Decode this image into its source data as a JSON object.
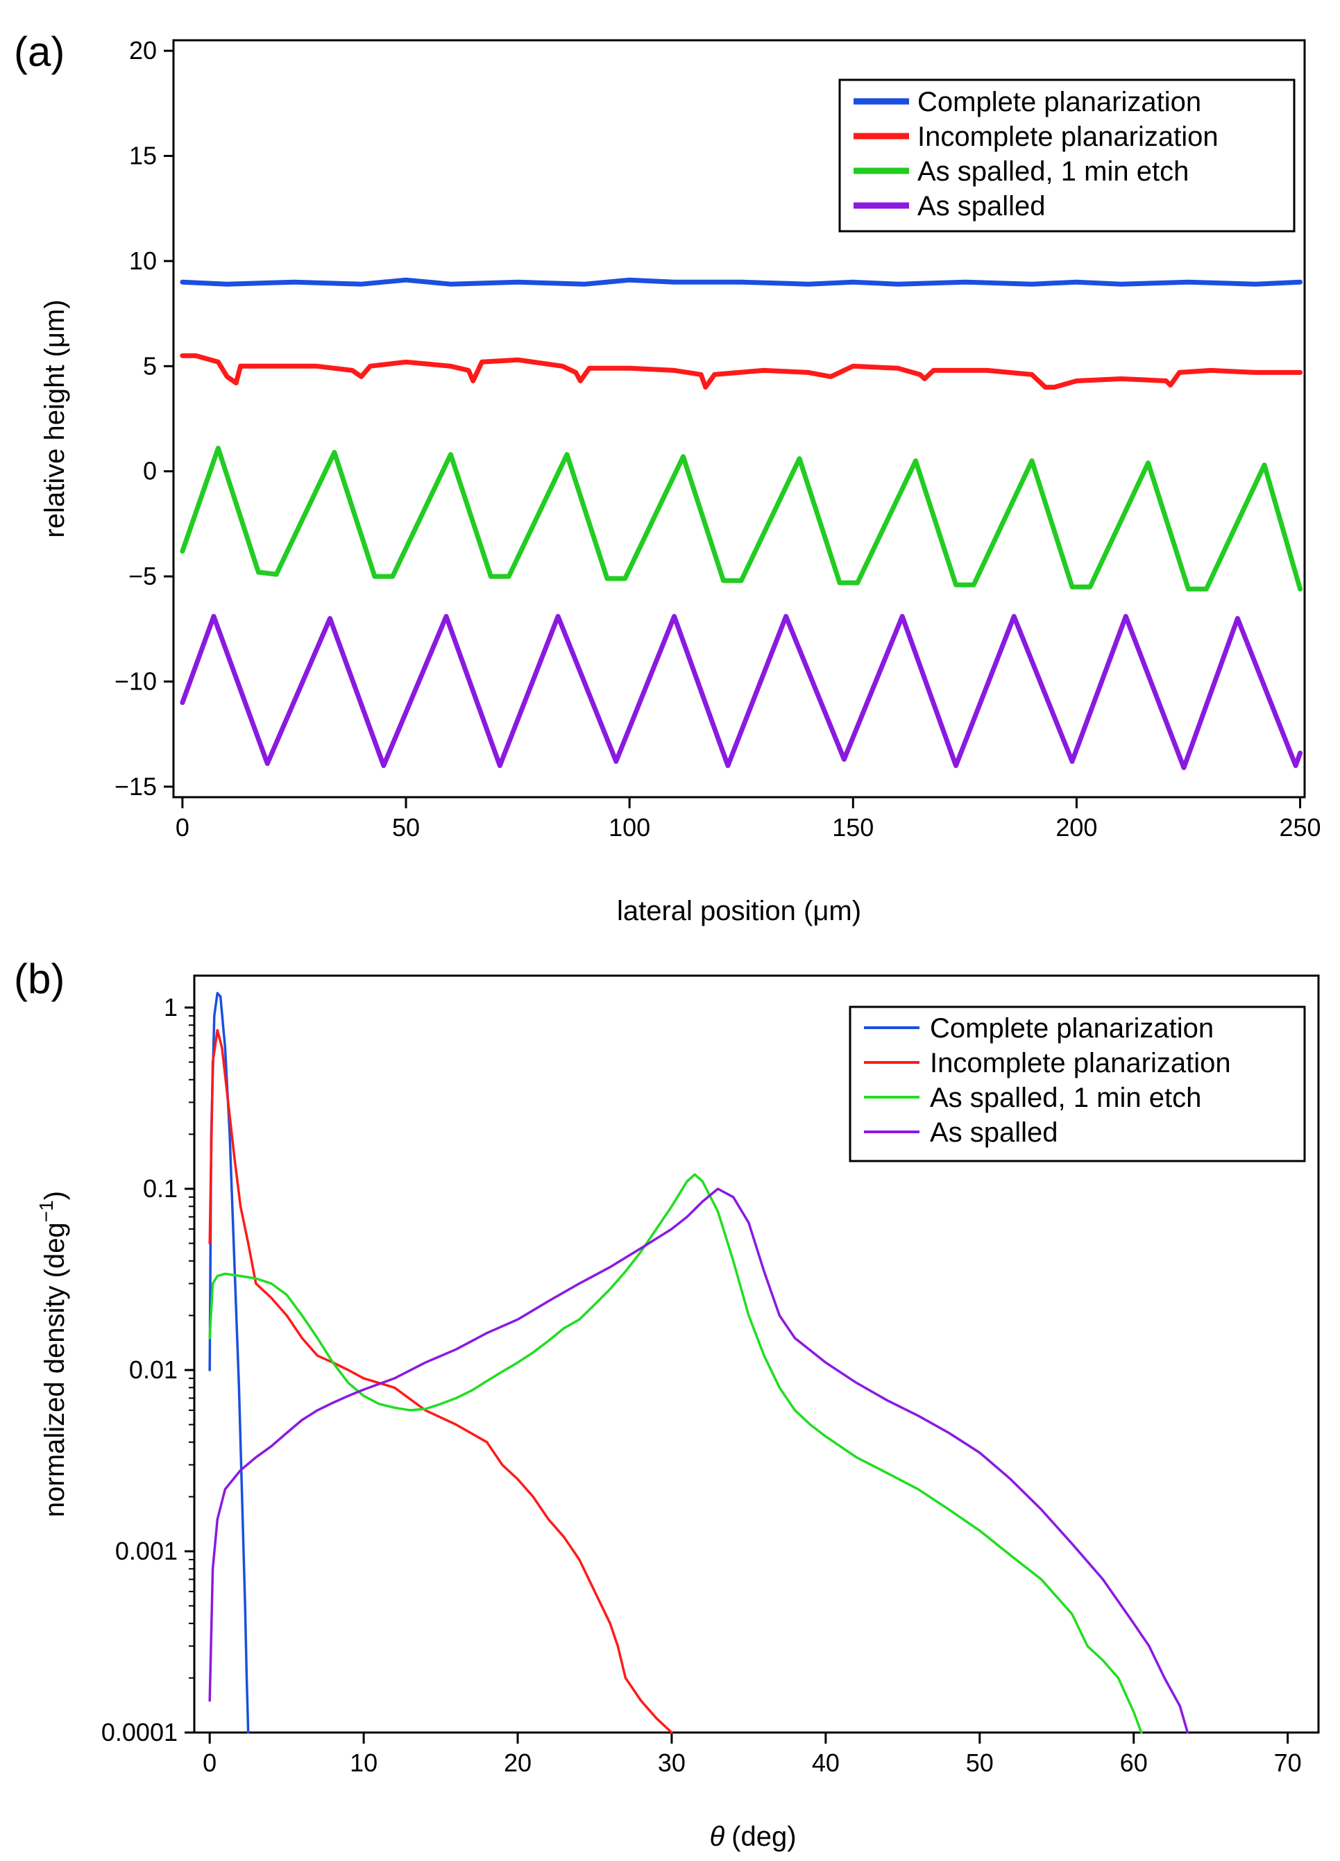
{
  "chart_data": [
    {
      "panel_label": "(a)",
      "type": "line",
      "xlabel": "lateral position (μm)",
      "ylabel": "relative height (μm)",
      "xlim": [
        -2,
        251
      ],
      "ylim": [
        -15.5,
        20.5
      ],
      "xticks": [
        0,
        50,
        100,
        150,
        200,
        250
      ],
      "xtick_labels": [
        "0",
        "50",
        "100",
        "150",
        "200",
        "250"
      ],
      "yticks": [
        20,
        15,
        10,
        5,
        0,
        -5,
        -10,
        -15
      ],
      "ytick_labels": [
        "20",
        "15",
        "10",
        "5",
        "0",
        "−5",
        "−10",
        "−15"
      ],
      "legend_position": "top-right",
      "series": [
        {
          "name": "Complete planarization",
          "color": "#1a4fe0",
          "x": [
            0,
            10,
            25,
            40,
            50,
            60,
            75,
            90,
            100,
            110,
            125,
            140,
            150,
            160,
            175,
            190,
            200,
            210,
            225,
            240,
            250
          ],
          "y": [
            9.0,
            8.9,
            9.0,
            8.9,
            9.1,
            8.9,
            9.0,
            8.9,
            9.1,
            9.0,
            9.0,
            8.9,
            9.0,
            8.9,
            9.0,
            8.9,
            9.0,
            8.9,
            9.0,
            8.9,
            9.0
          ]
        },
        {
          "name": "Incomplete planarization",
          "color": "#ff1a1a",
          "x": [
            0,
            3,
            8,
            10,
            12,
            13,
            20,
            30,
            38,
            40,
            42,
            50,
            60,
            64,
            65,
            67,
            75,
            85,
            88,
            89,
            91,
            100,
            110,
            116,
            117,
            119,
            130,
            140,
            145,
            150,
            160,
            165,
            166,
            168,
            180,
            190,
            193,
            195,
            200,
            210,
            220,
            221,
            223,
            230,
            240,
            250
          ],
          "y": [
            5.5,
            5.5,
            5.2,
            4.5,
            4.2,
            5.0,
            5.0,
            5.0,
            4.8,
            4.5,
            5.0,
            5.2,
            5.0,
            4.8,
            4.3,
            5.2,
            5.3,
            5.0,
            4.7,
            4.3,
            4.9,
            4.9,
            4.8,
            4.6,
            4.0,
            4.6,
            4.8,
            4.7,
            4.5,
            5.0,
            4.9,
            4.6,
            4.4,
            4.8,
            4.8,
            4.6,
            4.0,
            4.0,
            4.3,
            4.4,
            4.3,
            4.1,
            4.7,
            4.8,
            4.7,
            4.7
          ]
        },
        {
          "name": "As spalled, 1 min etch",
          "color": "#22cc22",
          "x": [
            0,
            8,
            17,
            21,
            34,
            43,
            47,
            60,
            69,
            73,
            86,
            95,
            99,
            112,
            121,
            125,
            138,
            147,
            151,
            164,
            173,
            177,
            190,
            199,
            203,
            216,
            225,
            229,
            242,
            250
          ],
          "y": [
            -3.8,
            1.1,
            -4.8,
            -4.9,
            0.9,
            -5.0,
            -5.0,
            0.8,
            -5.0,
            -5.0,
            0.8,
            -5.1,
            -5.1,
            0.7,
            -5.2,
            -5.2,
            0.6,
            -5.3,
            -5.3,
            0.5,
            -5.4,
            -5.4,
            0.5,
            -5.5,
            -5.5,
            0.4,
            -5.6,
            -5.6,
            0.3,
            -5.6
          ]
        },
        {
          "name": "As spalled",
          "color": "#8a1ae0",
          "x": [
            0,
            7,
            19,
            33,
            45,
            59,
            71,
            84,
            97,
            110,
            122,
            135,
            148,
            161,
            173,
            186,
            199,
            211,
            224,
            236,
            249,
            250
          ],
          "y": [
            -11.0,
            -6.9,
            -13.9,
            -7.0,
            -14.0,
            -6.9,
            -14.0,
            -6.9,
            -13.8,
            -6.9,
            -14.0,
            -6.9,
            -13.7,
            -6.9,
            -14.0,
            -6.9,
            -13.8,
            -6.9,
            -14.1,
            -7.0,
            -14.0,
            -13.4
          ]
        }
      ]
    },
    {
      "panel_label": "(b)",
      "type": "line",
      "yscale": "log",
      "xlabel_symbol": "θ",
      "xlabel": "(deg)",
      "ylabel": "normalized density (deg",
      "ylabel_superscript": "−1",
      "ylabel_close": ")",
      "xlim": [
        -1,
        72
      ],
      "ylim": [
        0.0001,
        1.5
      ],
      "xticks": [
        0,
        10,
        20,
        30,
        40,
        50,
        60,
        70
      ],
      "xtick_labels": [
        "0",
        "10",
        "20",
        "30",
        "40",
        "50",
        "60",
        "70"
      ],
      "yticks": [
        1,
        0.1,
        0.01,
        0.001,
        0.0001
      ],
      "ytick_labels": [
        "1",
        "0.1",
        "0.01",
        "0.001",
        "0.0001"
      ],
      "legend_position": "top-right",
      "series": [
        {
          "name": "Complete planarization",
          "color": "#1a4fe0",
          "x": [
            0,
            0.1,
            0.3,
            0.5,
            0.7,
            1.0,
            1.3,
            1.6,
            1.9,
            2.1,
            2.3,
            2.4,
            2.5
          ],
          "y": [
            0.01,
            0.2,
            0.9,
            1.2,
            1.15,
            0.6,
            0.2,
            0.04,
            0.008,
            0.002,
            0.0005,
            0.0002,
            0.0001
          ]
        },
        {
          "name": "Incomplete planarization",
          "color": "#ff1a1a",
          "x": [
            0,
            0.2,
            0.5,
            0.8,
            1.2,
            1.6,
            2.0,
            2.5,
            3.0,
            4,
            5,
            6,
            7,
            8,
            9,
            10,
            12,
            14,
            16,
            18,
            19,
            20,
            21,
            22,
            23,
            24,
            25,
            26,
            26.5,
            27,
            28,
            29,
            30
          ],
          "y": [
            0.05,
            0.5,
            0.75,
            0.6,
            0.3,
            0.15,
            0.08,
            0.05,
            0.03,
            0.025,
            0.02,
            0.015,
            0.012,
            0.011,
            0.01,
            0.009,
            0.008,
            0.006,
            0.005,
            0.004,
            0.003,
            0.0025,
            0.002,
            0.0015,
            0.0012,
            0.0009,
            0.0006,
            0.0004,
            0.0003,
            0.0002,
            0.00015,
            0.00012,
            0.0001
          ]
        },
        {
          "name": "As spalled,  1 min etch",
          "color": "#22dd22",
          "x": [
            0,
            0.2,
            0.5,
            1,
            2,
            3,
            4,
            5,
            6,
            7,
            8,
            9,
            10,
            11,
            12,
            13,
            14,
            15,
            16,
            17,
            18,
            19,
            20,
            21,
            22,
            23,
            24,
            25,
            26,
            27,
            28,
            29,
            30,
            31,
            31.5,
            32,
            33,
            34,
            35,
            36,
            37,
            38,
            39,
            40,
            42,
            44,
            46,
            48,
            50,
            52,
            54,
            56,
            57,
            58,
            59,
            60,
            60.5
          ],
          "y": [
            0.015,
            0.03,
            0.033,
            0.034,
            0.033,
            0.032,
            0.03,
            0.026,
            0.02,
            0.015,
            0.011,
            0.0085,
            0.0072,
            0.0065,
            0.0062,
            0.006,
            0.0061,
            0.0065,
            0.007,
            0.0077,
            0.0087,
            0.0098,
            0.011,
            0.0125,
            0.0145,
            0.017,
            0.019,
            0.023,
            0.028,
            0.035,
            0.045,
            0.06,
            0.08,
            0.11,
            0.12,
            0.11,
            0.075,
            0.04,
            0.02,
            0.012,
            0.008,
            0.006,
            0.005,
            0.0043,
            0.0033,
            0.0027,
            0.0022,
            0.0017,
            0.0013,
            0.00095,
            0.0007,
            0.00045,
            0.0003,
            0.00025,
            0.0002,
            0.00013,
            0.0001
          ]
        },
        {
          "name": "As spalled",
          "color": "#8a1ae0",
          "x": [
            0,
            0.2,
            0.5,
            1,
            2,
            3,
            4,
            5,
            6,
            7,
            8,
            9,
            10,
            12,
            14,
            16,
            18,
            20,
            22,
            24,
            26,
            28,
            30,
            31,
            32,
            33,
            34,
            35,
            36,
            37,
            38,
            40,
            42,
            44,
            46,
            48,
            50,
            52,
            54,
            56,
            58,
            60,
            61,
            62,
            63,
            63.5
          ],
          "y": [
            0.00015,
            0.0008,
            0.0015,
            0.0022,
            0.0028,
            0.0033,
            0.0038,
            0.0045,
            0.0053,
            0.006,
            0.0066,
            0.0072,
            0.0078,
            0.009,
            0.011,
            0.013,
            0.016,
            0.019,
            0.024,
            0.03,
            0.037,
            0.047,
            0.06,
            0.07,
            0.085,
            0.1,
            0.09,
            0.065,
            0.035,
            0.02,
            0.015,
            0.011,
            0.0085,
            0.0068,
            0.0056,
            0.0045,
            0.0035,
            0.0025,
            0.0017,
            0.0011,
            0.0007,
            0.0004,
            0.0003,
            0.0002,
            0.00014,
            0.0001
          ]
        }
      ]
    }
  ]
}
